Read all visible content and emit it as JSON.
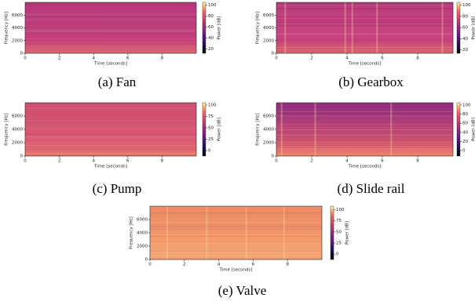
{
  "chart_data": [
    {
      "type": "heatmap",
      "cmap": "magma",
      "caption": "(a) Fan",
      "xlabel": "Time [seconds]",
      "ylabel": "Frequency [Hz]",
      "xlim": [
        0,
        10
      ],
      "ylim": [
        0,
        8000
      ],
      "xticks": [
        0,
        2,
        4,
        6,
        8
      ],
      "yticks": [
        0,
        2000,
        4000,
        6000
      ],
      "colorbar": {
        "label": "Power [dB]",
        "lim": [
          12,
          105
        ],
        "ticks": [
          20,
          40,
          60,
          80,
          100
        ]
      }
    },
    {
      "type": "heatmap",
      "cmap": "magma",
      "caption": "(b) Gearbox",
      "xlabel": "Time [seconds]",
      "ylabel": "Frequency [Hz]",
      "xlim": [
        0,
        10
      ],
      "ylim": [
        0,
        8000
      ],
      "xticks": [
        0,
        2,
        4,
        6,
        8
      ],
      "yticks": [
        0,
        2000,
        4000,
        6000
      ],
      "colorbar": {
        "label": "Power [dB]",
        "lim": [
          14,
          105
        ],
        "ticks": [
          20,
          40,
          60,
          80,
          100
        ]
      }
    },
    {
      "type": "heatmap",
      "cmap": "magma",
      "caption": "(c) Pump",
      "xlabel": "Time [seconds]",
      "ylabel": "Frequency [Hz]",
      "xlim": [
        0,
        10
      ],
      "ylim": [
        0,
        8000
      ],
      "xticks": [
        0,
        2,
        4,
        6,
        8
      ],
      "yticks": [
        0,
        2000,
        4000,
        6000
      ],
      "colorbar": {
        "label": "Power [dB]",
        "lim": [
          -12,
          105
        ],
        "ticks": [
          0,
          25,
          50,
          75,
          100
        ]
      }
    },
    {
      "type": "heatmap",
      "cmap": "magma",
      "caption": "(d) Slide rail",
      "xlabel": "Time [seconds]",
      "ylabel": "Frequency [Hz]",
      "xlim": [
        0,
        10
      ],
      "ylim": [
        0,
        8000
      ],
      "xticks": [
        0,
        2,
        4,
        6,
        8
      ],
      "yticks": [
        0,
        2000,
        4000,
        6000
      ],
      "colorbar": {
        "label": "Power [dB]",
        "lim": [
          -12,
          105
        ],
        "ticks": [
          0,
          20,
          40,
          60,
          80,
          100
        ]
      }
    },
    {
      "type": "heatmap",
      "cmap": "magma",
      "caption": "(e) Valve",
      "xlabel": "Time [seconds]",
      "ylabel": "Frequency [Hz]",
      "xlim": [
        0,
        10
      ],
      "ylim": [
        0,
        8000
      ],
      "xticks": [
        0,
        2,
        4,
        6,
        8
      ],
      "yticks": [
        0,
        2000,
        4000,
        6000
      ],
      "colorbar": {
        "label": "Power [dB]",
        "lim": [
          -12,
          108
        ],
        "ticks": [
          0,
          25,
          50,
          75,
          100
        ]
      }
    }
  ]
}
